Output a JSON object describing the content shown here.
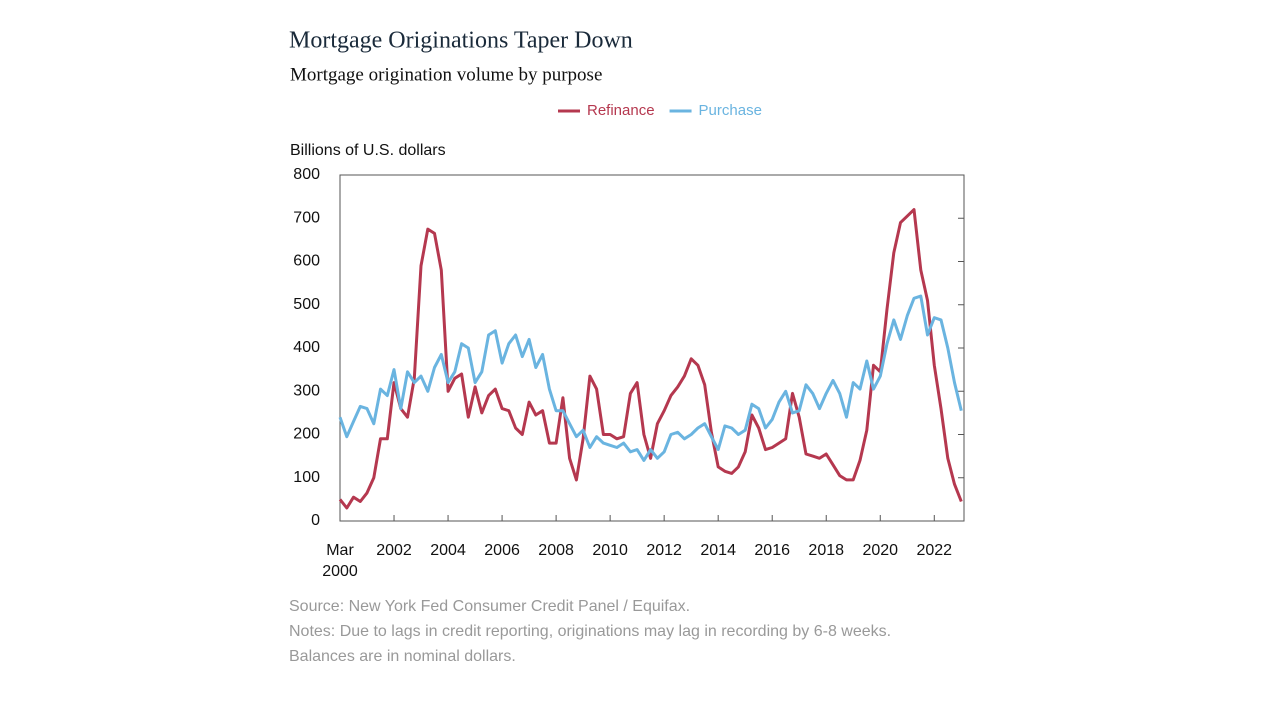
{
  "chart_data": {
    "type": "line",
    "title": "Mortgage Originations Taper Down",
    "subtitle": "Mortgage origination volume by purpose",
    "y_label": "Billions of U.S. dollars",
    "source": "Source: New York Fed Consumer Credit Panel / Equifax.",
    "notes": [
      "Notes: Due to lags in credit reporting, originations may lag in recording by 6-8 weeks.",
      "Balances are in nominal dollars."
    ],
    "x": [
      2000,
      2000.25,
      2000.5,
      2000.75,
      2001,
      2001.25,
      2001.5,
      2001.75,
      2002,
      2002.25,
      2002.5,
      2002.75,
      2003,
      2003.25,
      2003.5,
      2003.75,
      2004,
      2004.25,
      2004.5,
      2004.75,
      2005,
      2005.25,
      2005.5,
      2005.75,
      2006,
      2006.25,
      2006.5,
      2006.75,
      2007,
      2007.25,
      2007.5,
      2007.75,
      2008,
      2008.25,
      2008.5,
      2008.75,
      2009,
      2009.25,
      2009.5,
      2009.75,
      2010,
      2010.25,
      2010.5,
      2010.75,
      2011,
      2011.25,
      2011.5,
      2011.75,
      2012,
      2012.25,
      2012.5,
      2012.75,
      2013,
      2013.25,
      2013.5,
      2013.75,
      2014,
      2014.25,
      2014.5,
      2014.75,
      2015,
      2015.25,
      2015.5,
      2015.75,
      2016,
      2016.25,
      2016.5,
      2016.75,
      2017,
      2017.25,
      2017.5,
      2017.75,
      2018,
      2018.25,
      2018.5,
      2018.75,
      2019,
      2019.25,
      2019.5,
      2019.75,
      2020,
      2020.25,
      2020.5,
      2020.75,
      2021,
      2021.25,
      2021.5,
      2021.75,
      2022,
      2022.25,
      2022.5,
      2022.75,
      2023
    ],
    "series": [
      {
        "name": "Refinance",
        "color": "#b5384f",
        "values": [
          50,
          30,
          55,
          45,
          65,
          100,
          190,
          190,
          320,
          260,
          240,
          330,
          590,
          675,
          665,
          580,
          300,
          330,
          340,
          240,
          310,
          250,
          290,
          305,
          260,
          255,
          215,
          200,
          275,
          245,
          255,
          180,
          180,
          285,
          145,
          95,
          190,
          335,
          305,
          200,
          200,
          190,
          195,
          295,
          320,
          200,
          145,
          225,
          255,
          290,
          310,
          335,
          375,
          360,
          315,
          205,
          125,
          115,
          110,
          125,
          160,
          245,
          215,
          165,
          170,
          180,
          190,
          295,
          240,
          155,
          150,
          145,
          155,
          130,
          105,
          95,
          95,
          140,
          210,
          360,
          345,
          490,
          620,
          690,
          705,
          720,
          580,
          510,
          360,
          260,
          145,
          85,
          45
        ]
      },
      {
        "name": "Purchase",
        "color": "#6ab4e0",
        "values": [
          240,
          195,
          230,
          265,
          260,
          225,
          305,
          290,
          350,
          260,
          345,
          320,
          335,
          300,
          355,
          385,
          320,
          345,
          410,
          400,
          320,
          345,
          430,
          440,
          365,
          410,
          430,
          380,
          420,
          355,
          385,
          305,
          255,
          255,
          225,
          195,
          210,
          170,
          195,
          180,
          175,
          170,
          180,
          160,
          165,
          140,
          165,
          145,
          160,
          200,
          205,
          190,
          200,
          215,
          225,
          195,
          165,
          220,
          215,
          200,
          210,
          270,
          260,
          215,
          235,
          275,
          300,
          250,
          255,
          315,
          295,
          260,
          295,
          325,
          295,
          240,
          320,
          305,
          370,
          305,
          335,
          410,
          465,
          420,
          475,
          515,
          520,
          430,
          470,
          465,
          400,
          320,
          255
        ]
      }
    ],
    "xlim": [
      2000,
      2023.1
    ],
    "xticks": [
      {
        "value": 2000,
        "label": "Mar 2000"
      },
      2002,
      2004,
      2006,
      2008,
      2010,
      2012,
      2014,
      2016,
      2018,
      2020,
      2022
    ],
    "ylim": [
      0,
      800
    ],
    "yticks": [
      0,
      100,
      200,
      300,
      400,
      500,
      600,
      700,
      800
    ],
    "legend": "top"
  }
}
